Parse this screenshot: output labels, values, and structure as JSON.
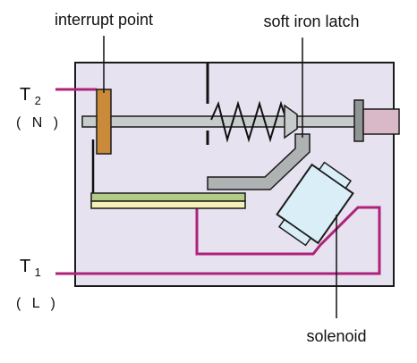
{
  "labels": {
    "interrupt_point": "interrupt point",
    "soft_iron_latch": "soft iron latch",
    "solenoid": "solenoid"
  },
  "terminals": {
    "t2": {
      "letter": "T",
      "sub": "2",
      "paren": "( N )"
    },
    "t1": {
      "letter": "T",
      "sub": "1",
      "paren": "( L )"
    }
  },
  "colors": {
    "enclosure_fill": "#e6e2ef",
    "outline": "#1a1a1a",
    "wire": "#b0227a",
    "contact": "#c98b3a",
    "rod": "#c7cbcb",
    "latch": "#aeb2b2",
    "green_bar": "#b2cc88",
    "yellow_bar": "#f4f0b8",
    "solenoid_body": "#d9eef7",
    "knob": "#d9b8c7"
  }
}
